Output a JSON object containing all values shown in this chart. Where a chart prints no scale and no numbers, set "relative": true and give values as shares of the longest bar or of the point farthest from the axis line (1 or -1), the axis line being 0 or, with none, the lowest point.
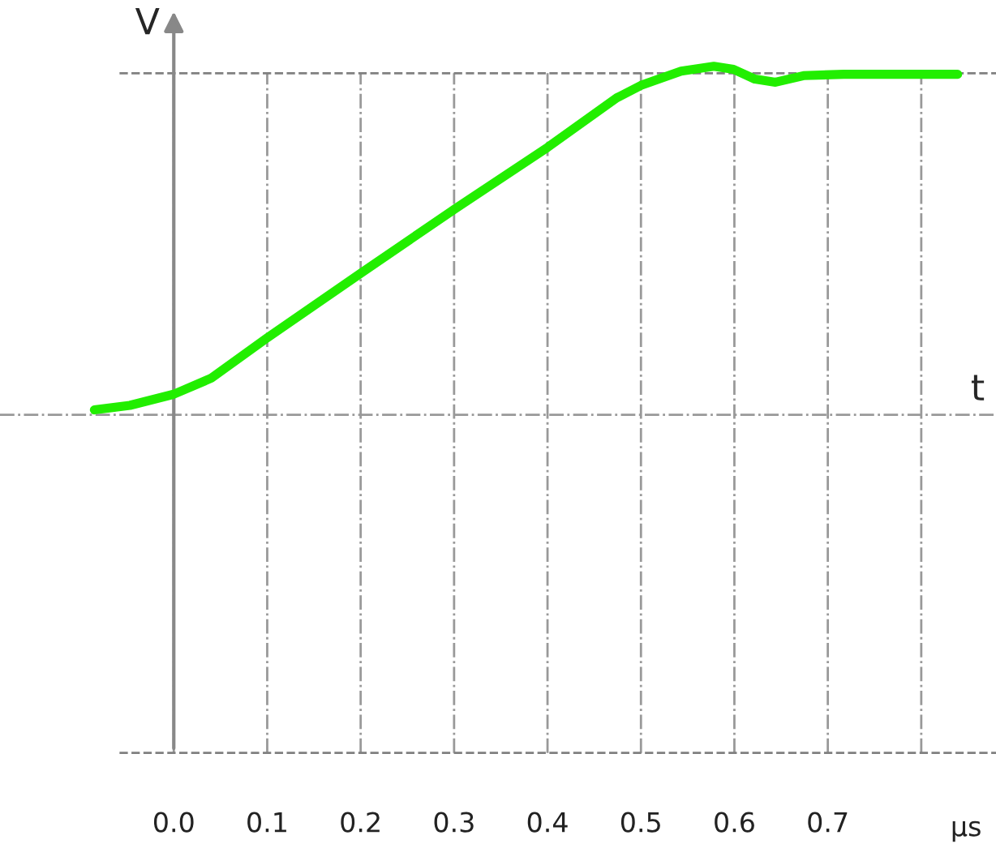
{
  "chart_data": {
    "type": "line",
    "relative": true,
    "xlabel": "t",
    "ylabel": "V",
    "annotations": [
      "μs"
    ],
    "x": [
      -0.085,
      -0.047,
      0.0,
      0.04,
      0.099,
      0.2,
      0.3,
      0.4,
      0.474,
      0.5,
      0.543,
      0.578,
      0.599,
      0.622,
      0.644,
      0.674,
      0.717,
      0.839
    ],
    "series": [
      {
        "color": "#22ee00",
        "values": [
          0.014,
          0.027,
          0.059,
          0.105,
          0.219,
          0.406,
          0.589,
          0.767,
          0.909,
          0.945,
          0.986,
          1.0,
          0.991,
          0.963,
          0.954,
          0.973,
          0.977,
          0.977
        ]
      }
    ],
    "xlim": [
      -0.186,
      0.88
    ],
    "xticks": [
      {
        "value": 0,
        "label": "0.0"
      },
      0.1,
      0.2,
      0.3,
      0.4,
      0.5,
      0.6,
      0.7,
      {
        "value": 0.8,
        "label": null
      }
    ],
    "grid": "x",
    "marker": "none",
    "line_style": "solid",
    "legend": false,
    "ref_lines": [
      {
        "axis": "y",
        "value": 0.98,
        "line_style": "dashed",
        "color": "#808080"
      },
      {
        "axis": "y",
        "value": -0.97,
        "line_style": "dashed",
        "color": "#808080"
      }
    ]
  }
}
